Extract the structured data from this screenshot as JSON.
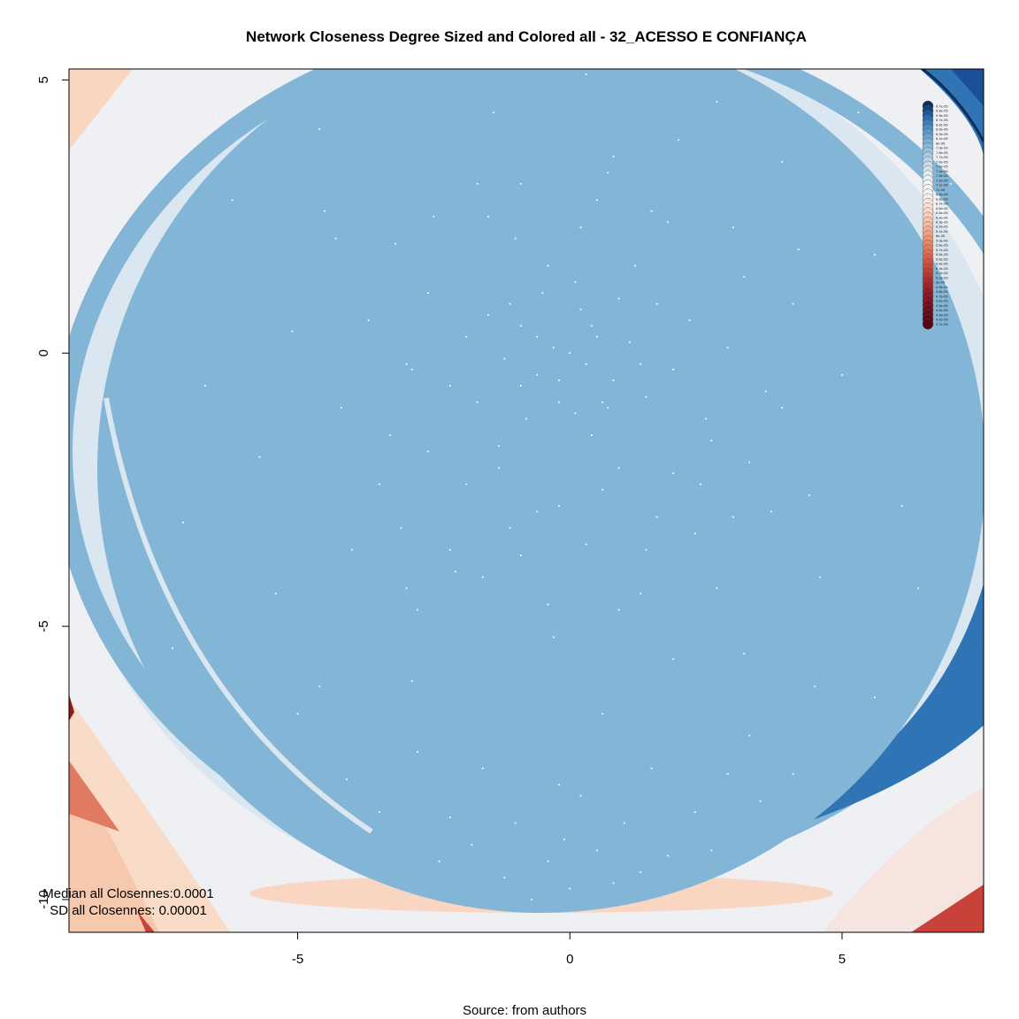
{
  "chart_data": {
    "type": "scatter",
    "title": "Network Closeness Degree Sized and Colored all - 32_ACESSO E CONFIANÇA",
    "xlabel": "",
    "ylabel": "",
    "xlim": [
      -9.2,
      7.6
    ],
    "ylim": [
      -10.6,
      5.2
    ],
    "x_ticks": [
      -5,
      0,
      5
    ],
    "x_tick_labels": [
      "-5",
      "0",
      "5"
    ],
    "y_ticks": [
      5,
      0,
      -5,
      -10
    ],
    "y_tick_labels": [
      "5",
      "0",
      "-5",
      "-10"
    ],
    "grid": false,
    "legend_position": "top-right",
    "colors": {
      "node_fill": "#83b5d6",
      "light_band": "#dbe7f0",
      "dark_blue": "#2f74b4",
      "navy": "#1b4f96",
      "light_gray": "#eff0f4",
      "peach": "#f9d6c2",
      "salmon": "#e07a60",
      "red": "#c8423a",
      "dark_red": "#8c1c1c"
    },
    "legend": {
      "entries": [
        "9.7e-05",
        "9.6e-05",
        "9.3e-05",
        "8.7e-05",
        "8.6e-05",
        "8.5e-05",
        "8.3e-05",
        "8.1e-05",
        "8e-05",
        "7.9e-05",
        "7.8e-05",
        "7.7e-05",
        "7.6e-05",
        "7.5e-05",
        "7.4e-05",
        "7.3e-05",
        "7.2e-05",
        "7.1e-05",
        "7e-05",
        "6.9e-05",
        "6.8e-05",
        "6.7e-05",
        "6.6e-05",
        "6.5e-05",
        "6.4e-05",
        "6.3e-05",
        "6.2e-05",
        "6.1e-05",
        "6e-05",
        "5.9e-05",
        "5.8e-05",
        "5.7e-05",
        "5.6e-05",
        "5.5e-05",
        "5.4e-05",
        "5.3e-05",
        "5.2e-05",
        "5.1e-05",
        "5e-05",
        "4.9e-05",
        "4.8e-05",
        "4.7e-05",
        "4.6e-05",
        "4.5e-05",
        "4.4e-05",
        "4.3e-05",
        "4.2e-05",
        "3.7e-05"
      ],
      "colors": [
        "#0b2e5c",
        "#13407a",
        "#1d5698",
        "#2b6bae",
        "#3b7dbb",
        "#4a8bc2",
        "#5a98c9",
        "#6aa4cf",
        "#7aafd4",
        "#8ab8d9",
        "#9ac2de",
        "#aacbe2",
        "#b9d4e6",
        "#c6dcea",
        "#d3e3ee",
        "#dfeaf2",
        "#e8eff5",
        "#eff3f7",
        "#f5f6f8",
        "#f7f3f1",
        "#f8eee9",
        "#f9e7df",
        "#f9e0d4",
        "#f9d8c9",
        "#f8d0be",
        "#f6c5b0",
        "#f4baa2",
        "#f2ae94",
        "#efa285",
        "#ec9577",
        "#e8886a",
        "#e37b5e",
        "#de6e53",
        "#d86249",
        "#d05641",
        "#c84a3a",
        "#bf3f34",
        "#b5352f",
        "#aa2c2b",
        "#9f2427",
        "#951d24",
        "#8a1721",
        "#80131f",
        "#76101d",
        "#6d0d1b",
        "#640b1a",
        "#5c0918",
        "#520616"
      ]
    },
    "nodes": [
      [
        0.0,
        0.0
      ],
      [
        0.3,
        -0.2
      ],
      [
        -0.3,
        0.1
      ],
      [
        0.5,
        0.3
      ],
      [
        -0.6,
        -0.4
      ],
      [
        0.8,
        -0.5
      ],
      [
        -0.9,
        0.5
      ],
      [
        0.2,
        0.8
      ],
      [
        -0.2,
        -0.9
      ],
      [
        1.1,
        0.2
      ],
      [
        -1.2,
        -0.1
      ],
      [
        0.7,
        -1.0
      ],
      [
        -0.8,
        -1.2
      ],
      [
        1.4,
        -0.8
      ],
      [
        -1.5,
        0.7
      ],
      [
        0.1,
        1.3
      ],
      [
        1.6,
        0.9
      ],
      [
        -1.7,
        -0.9
      ],
      [
        0.4,
        -1.5
      ],
      [
        -0.4,
        1.6
      ],
      [
        1.9,
        -0.3
      ],
      [
        -1.9,
        0.3
      ],
      [
        1.2,
        1.6
      ],
      [
        -1.3,
        -1.7
      ],
      [
        2.2,
        0.6
      ],
      [
        -2.2,
        -0.6
      ],
      [
        0.9,
        -2.1
      ],
      [
        -1.0,
        2.1
      ],
      [
        2.5,
        -1.2
      ],
      [
        -2.6,
        1.1
      ],
      [
        1.8,
        2.4
      ],
      [
        -1.9,
        -2.4
      ],
      [
        2.9,
        0.1
      ],
      [
        -3.0,
        -0.2
      ],
      [
        0.5,
        2.8
      ],
      [
        -0.6,
        -2.9
      ],
      [
        3.2,
        1.4
      ],
      [
        -3.3,
        -1.5
      ],
      [
        1.6,
        -3.0
      ],
      [
        -1.7,
        3.1
      ],
      [
        2.4,
        -2.4
      ],
      [
        -2.5,
        2.5
      ],
      [
        3.6,
        -0.7
      ],
      [
        -3.7,
        0.6
      ],
      [
        0.8,
        3.6
      ],
      [
        -0.9,
        -3.7
      ],
      [
        3.0,
        -3.0
      ],
      [
        -3.1,
        -3.2
      ],
      [
        2.0,
        3.9
      ],
      [
        -2.1,
        -4.0
      ],
      [
        4.1,
        0.9
      ],
      [
        -4.2,
        -1.0
      ],
      [
        1.3,
        -4.4
      ],
      [
        -1.4,
        4.4
      ],
      [
        4.4,
        -2.6
      ],
      [
        -4.5,
        2.6
      ],
      [
        2.7,
        4.6
      ],
      [
        -2.8,
        -4.7
      ],
      [
        3.9,
        3.5
      ],
      [
        -4.0,
        -3.6
      ],
      [
        5.0,
        -0.4
      ],
      [
        -5.1,
        0.4
      ],
      [
        0.3,
        5.1
      ],
      [
        -0.3,
        -5.2
      ],
      [
        4.6,
        -4.1
      ],
      [
        -4.6,
        4.1
      ],
      [
        5.6,
        1.8
      ],
      [
        -5.7,
        -1.9
      ],
      [
        1.9,
        -5.6
      ],
      [
        -2.0,
        5.7
      ],
      [
        3.2,
        -5.5
      ],
      [
        -3.3,
        5.5
      ],
      [
        6.1,
        -2.8
      ],
      [
        -6.2,
        2.8
      ],
      [
        2.8,
        6.0
      ],
      [
        -2.9,
        -6.0
      ],
      [
        5.3,
        4.4
      ],
      [
        -5.4,
        -4.4
      ],
      [
        6.6,
        0.5
      ],
      [
        -6.7,
        -0.6
      ],
      [
        0.6,
        -6.6
      ],
      [
        -0.6,
        6.7
      ],
      [
        4.5,
        -6.1
      ],
      [
        -4.6,
        -6.1
      ],
      [
        6.4,
        -4.3
      ],
      [
        -6.5,
        4.3
      ],
      [
        7.0,
        3.1
      ],
      [
        -7.1,
        -3.1
      ],
      [
        3.3,
        -7.0
      ],
      [
        -3.4,
        7.0
      ],
      [
        1.5,
        -7.6
      ],
      [
        -1.6,
        -7.6
      ],
      [
        0.2,
        -8.1
      ],
      [
        -0.2,
        -7.9
      ],
      [
        2.9,
        -7.7
      ],
      [
        -2.8,
        -7.3
      ],
      [
        5.6,
        -6.3
      ],
      [
        -5.0,
        -6.6
      ],
      [
        6.8,
        -5.8
      ],
      [
        -7.3,
        -5.4
      ],
      [
        4.1,
        -7.7
      ],
      [
        -4.1,
        -7.8
      ],
      [
        1.0,
        -8.6
      ],
      [
        -1.0,
        -8.6
      ],
      [
        2.3,
        -8.4
      ],
      [
        -2.2,
        -8.5
      ],
      [
        3.5,
        -8.2
      ],
      [
        -3.5,
        -8.4
      ],
      [
        0.5,
        -9.1
      ],
      [
        -0.4,
        -9.3
      ],
      [
        1.8,
        -9.2
      ],
      [
        -1.8,
        -9.0
      ],
      [
        -0.7,
        -10.0
      ],
      [
        0.8,
        -9.7
      ],
      [
        -1.2,
        -9.6
      ],
      [
        1.3,
        -9.5
      ],
      [
        -0.1,
        -8.9
      ],
      [
        2.6,
        -9.1
      ],
      [
        -2.4,
        -9.3
      ],
      [
        0.0,
        -9.8
      ],
      [
        -3.0,
        -4.3
      ],
      [
        -2.2,
        -3.6
      ],
      [
        -1.1,
        -3.2
      ],
      [
        0.3,
        -3.5
      ],
      [
        1.4,
        -3.6
      ],
      [
        2.3,
        -3.3
      ],
      [
        -1.6,
        -4.1
      ],
      [
        0.9,
        -4.7
      ],
      [
        -0.4,
        -4.6
      ],
      [
        2.7,
        -4.3
      ],
      [
        3.3,
        -2.0
      ],
      [
        3.7,
        -2.9
      ],
      [
        -3.5,
        -2.4
      ],
      [
        -2.6,
        -1.8
      ],
      [
        -1.3,
        -2.1
      ],
      [
        0.6,
        -2.5
      ],
      [
        1.9,
        -2.2
      ],
      [
        -0.2,
        -2.8
      ],
      [
        2.6,
        -1.6
      ],
      [
        -2.9,
        -0.3
      ],
      [
        3.9,
        -1.0
      ],
      [
        -4.3,
        2.1
      ],
      [
        4.2,
        1.9
      ],
      [
        -0.9,
        3.1
      ],
      [
        0.7,
        3.3
      ],
      [
        -1.5,
        2.5
      ],
      [
        1.5,
        2.6
      ],
      [
        -3.2,
        2.0
      ],
      [
        3.0,
        2.3
      ],
      [
        0.2,
        2.3
      ],
      [
        -0.5,
        1.1
      ],
      [
        0.9,
        1.0
      ],
      [
        -1.1,
        0.9
      ],
      [
        1.3,
        -0.2
      ],
      [
        -0.9,
        -0.6
      ],
      [
        0.6,
        -0.9
      ],
      [
        -0.2,
        -0.5
      ],
      [
        0.4,
        0.5
      ],
      [
        -0.6,
        0.3
      ],
      [
        0.1,
        -1.1
      ]
    ]
  },
  "annotations": {
    "median": "Median all Closennes:0.0001",
    "sd": "SD all Closennes: 0.00001",
    "source": "Source: from authors"
  }
}
